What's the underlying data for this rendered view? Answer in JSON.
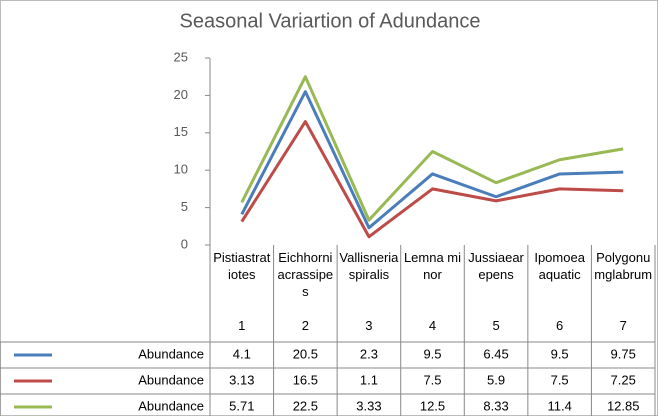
{
  "chart_data": {
    "type": "line",
    "title": "Seasonal Variartion of Adundance",
    "categories": [
      "Pistiastratiotes",
      "Eichhorniacrassipes",
      "Vallisneriaspiralis",
      "Lemna minor",
      "Jussiaearepens",
      "Ipomoea aquatic",
      "Polygonumglabrum"
    ],
    "category_numbers": [
      1,
      2,
      3,
      4,
      5,
      6,
      7
    ],
    "series": [
      {
        "name": "Abundance",
        "color": "#4a7ebb",
        "values": [
          4.1,
          20.5,
          2.3,
          9.5,
          6.45,
          9.5,
          9.75
        ]
      },
      {
        "name": "Abundance",
        "color": "#be4b48",
        "values": [
          3.13,
          16.5,
          1.1,
          7.5,
          5.9,
          7.5,
          7.25
        ]
      },
      {
        "name": "Abundance",
        "color": "#98b954",
        "values": [
          5.71,
          22.5,
          3.33,
          12.5,
          8.33,
          11.4,
          12.85
        ]
      }
    ],
    "ylim": [
      0,
      25
    ],
    "yticks": [
      0,
      5,
      10,
      15,
      20,
      25
    ],
    "grid": false
  }
}
